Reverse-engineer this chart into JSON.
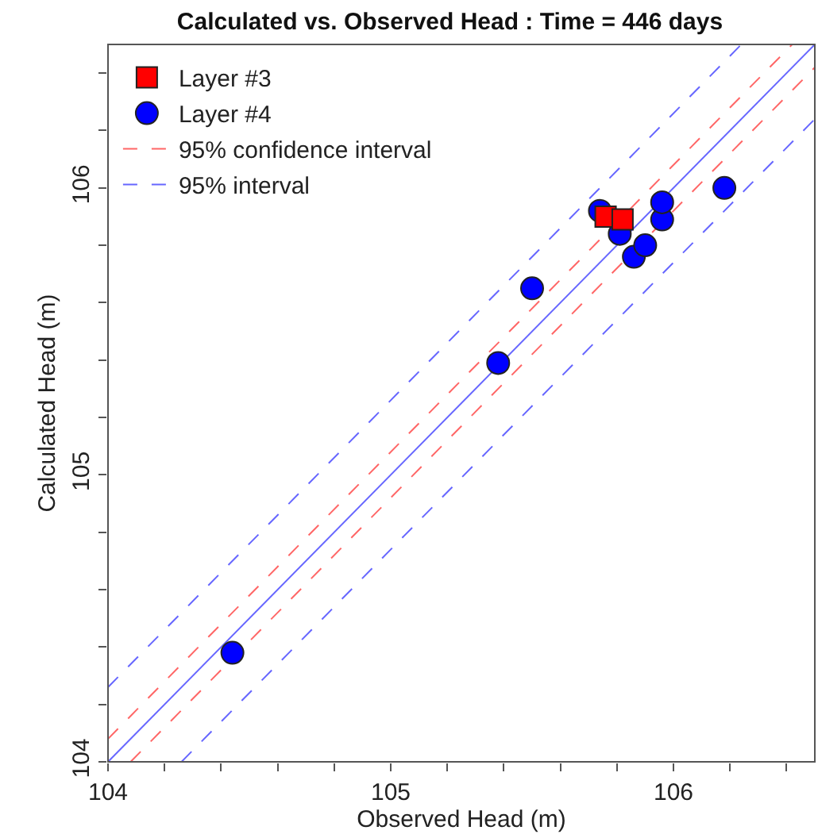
{
  "chart_data": {
    "type": "scatter",
    "title": "Calculated vs. Observed Head : Time = 446 days",
    "xlabel": "Observed Head (m)",
    "ylabel": "Calculated Head (m)",
    "xlim": [
      104,
      106.5
    ],
    "ylim": [
      104,
      106.5
    ],
    "xticks": [
      104,
      {
        "value": 104.2,
        "label": null
      },
      {
        "value": 104.4,
        "label": null
      },
      {
        "value": 104.6,
        "label": null
      },
      {
        "value": 104.8,
        "label": null
      },
      105,
      {
        "value": 105.2,
        "label": null
      },
      {
        "value": 105.4,
        "label": null
      },
      {
        "value": 105.6,
        "label": null
      },
      {
        "value": 105.8,
        "label": null
      },
      106,
      {
        "value": 106.2,
        "label": null
      },
      {
        "value": 106.4,
        "label": null
      }
    ],
    "yticks": [
      104,
      {
        "value": 104.2,
        "label": null
      },
      {
        "value": 104.4,
        "label": null
      },
      {
        "value": 104.6,
        "label": null
      },
      {
        "value": 104.8,
        "label": null
      },
      105,
      {
        "value": 105.2,
        "label": null
      },
      {
        "value": 105.4,
        "label": null
      },
      {
        "value": 105.6,
        "label": null
      },
      {
        "value": 105.8,
        "label": null
      },
      106,
      {
        "value": 106.2,
        "label": null
      },
      {
        "value": 106.4,
        "label": null
      }
    ],
    "grid": false,
    "legend": "top left",
    "series": [
      {
        "name": "Layer #3",
        "marker": "square",
        "color": "#ff0000",
        "x": [
          105.76,
          105.82
        ],
        "values": [
          105.9,
          105.89
        ]
      },
      {
        "name": "Layer #4",
        "marker": "circle",
        "color": "#0000ff",
        "x": [
          104.44,
          105.38,
          105.5,
          105.74,
          105.81,
          105.96,
          105.96,
          105.86,
          105.9,
          106.18
        ],
        "values": [
          104.38,
          105.39,
          105.65,
          105.92,
          105.84,
          105.89,
          105.95,
          105.76,
          105.8,
          106.0
        ]
      },
      {
        "name": "95% confidence interval",
        "type": "line",
        "line_style": "dashed",
        "color": "#ff6666",
        "x": [
          104,
          106.42
        ],
        "values": [
          104.08,
          106.5
        ]
      },
      {
        "type": "line",
        "line_style": "dashed",
        "color": "#ff6666",
        "x": [
          104.08,
          106.5
        ],
        "values": [
          104,
          106.42
        ]
      },
      {
        "name": "95% interval",
        "type": "line",
        "line_style": "dashed",
        "color": "#6666ff",
        "x": [
          104,
          106.24
        ],
        "values": [
          104.26,
          106.5
        ]
      },
      {
        "type": "line",
        "line_style": "dashed",
        "color": "#6666ff",
        "x": [
          104.26,
          106.5
        ],
        "values": [
          104,
          106.24
        ]
      },
      {
        "type": "line",
        "line_style": "solid",
        "color": "#6666ff",
        "x": [
          104,
          106.5
        ],
        "values": [
          104,
          106.5
        ]
      }
    ]
  }
}
